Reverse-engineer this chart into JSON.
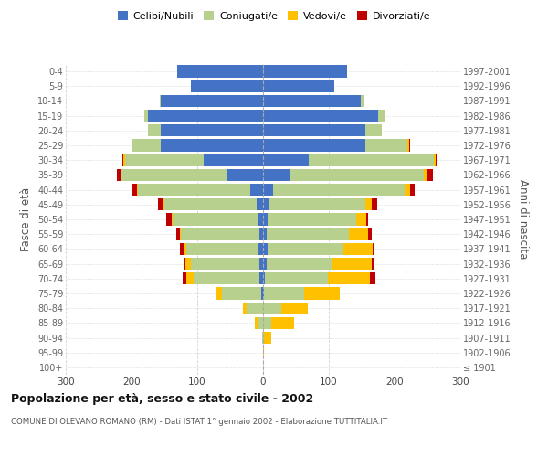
{
  "age_groups": [
    "100+",
    "95-99",
    "90-94",
    "85-89",
    "80-84",
    "75-79",
    "70-74",
    "65-69",
    "60-64",
    "55-59",
    "50-54",
    "45-49",
    "40-44",
    "35-39",
    "30-34",
    "25-29",
    "20-24",
    "15-19",
    "10-14",
    "5-9",
    "0-4"
  ],
  "birth_years": [
    "≤ 1901",
    "1902-1906",
    "1907-1911",
    "1912-1916",
    "1917-1921",
    "1922-1926",
    "1927-1931",
    "1932-1936",
    "1937-1941",
    "1942-1946",
    "1947-1951",
    "1952-1956",
    "1957-1961",
    "1962-1966",
    "1967-1971",
    "1972-1976",
    "1977-1981",
    "1982-1986",
    "1987-1991",
    "1992-1996",
    "1997-2001"
  ],
  "male": {
    "celibi": [
      0,
      0,
      0,
      0,
      0,
      3,
      5,
      5,
      8,
      5,
      7,
      10,
      20,
      55,
      90,
      155,
      155,
      175,
      155,
      110,
      130
    ],
    "coniugati": [
      0,
      0,
      2,
      8,
      25,
      60,
      100,
      105,
      108,
      120,
      130,
      140,
      170,
      160,
      120,
      45,
      20,
      5,
      2,
      0,
      0
    ],
    "vedovi": [
      0,
      0,
      0,
      5,
      5,
      8,
      12,
      8,
      5,
      2,
      2,
      2,
      2,
      2,
      2,
      0,
      0,
      0,
      0,
      0,
      0
    ],
    "divorziati": [
      0,
      0,
      0,
      0,
      0,
      0,
      5,
      3,
      5,
      5,
      8,
      8,
      8,
      5,
      2,
      0,
      0,
      0,
      0,
      0,
      0
    ]
  },
  "female": {
    "nubili": [
      0,
      0,
      0,
      0,
      0,
      2,
      3,
      5,
      7,
      5,
      7,
      10,
      15,
      40,
      70,
      155,
      155,
      175,
      148,
      108,
      128
    ],
    "coniugate": [
      0,
      0,
      2,
      12,
      28,
      60,
      95,
      100,
      115,
      125,
      135,
      145,
      200,
      205,
      190,
      65,
      25,
      10,
      5,
      0,
      0
    ],
    "vedove": [
      0,
      2,
      10,
      35,
      40,
      55,
      65,
      60,
      45,
      30,
      15,
      10,
      8,
      5,
      2,
      2,
      0,
      0,
      0,
      0,
      0
    ],
    "divorziate": [
      0,
      0,
      0,
      0,
      0,
      0,
      8,
      3,
      3,
      5,
      3,
      8,
      8,
      8,
      3,
      2,
      0,
      0,
      0,
      0,
      0
    ]
  },
  "colors": {
    "celibi": "#4472c4",
    "coniugati": "#b8d08d",
    "vedovi": "#ffc000",
    "divorziati": "#c00000"
  },
  "title": "Popolazione per età, sesso e stato civile - 2002",
  "subtitle": "COMUNE DI OLEVANO ROMANO (RM) - Dati ISTAT 1° gennaio 2002 - Elaborazione TUTTITALIA.IT",
  "ylabel_left": "Fasce di età",
  "ylabel_right": "Anni di nascita",
  "xlim": 300,
  "background_color": "#ffffff",
  "grid_color": "#cccccc",
  "legend_labels": [
    "Celibi/Nubili",
    "Coniugati/e",
    "Vedovi/e",
    "Divorziati/e"
  ]
}
